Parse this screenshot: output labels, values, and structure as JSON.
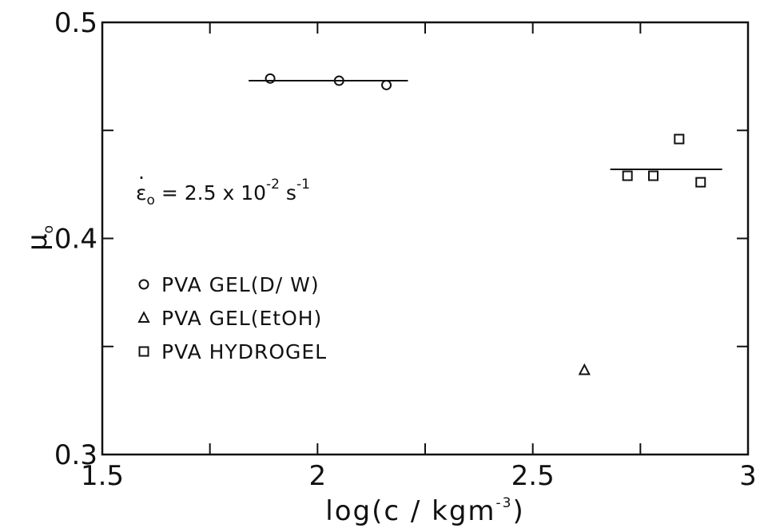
{
  "chart_data": {
    "type": "scatter",
    "xlabel": "log(c / kgm",
    "xlabel_sup": "-3",
    "xlabel_close": ")",
    "ylabel": "μ",
    "ylabel_sub": "o",
    "xlim": [
      1.5,
      3.0
    ],
    "ylim": [
      0.3,
      0.5
    ],
    "x_ticks": [
      1.5,
      2.0,
      2.5,
      3.0
    ],
    "x_tick_labels": [
      "1.5",
      "2",
      "2.5",
      "3"
    ],
    "y_ticks": [
      0.3,
      0.4,
      0.5
    ],
    "y_tick_labels": [
      "0.3",
      "0.4",
      "0.5"
    ],
    "x_minor_ticks": [
      1.75,
      2.25,
      2.75
    ],
    "y_minor_ticks": [
      0.35,
      0.45
    ],
    "grid": false,
    "annotation": {
      "lhs": "ε",
      "dot": "·",
      "sub": "o",
      "mid": " = 2.5 x 10",
      "exp": "-2",
      "unit": " s",
      "unit_exp": "-1"
    },
    "series": [
      {
        "name": "PVA GEL(D/ W)",
        "marker": "circle",
        "x": [
          1.89,
          2.05,
          2.16
        ],
        "y": [
          0.474,
          0.473,
          0.471
        ],
        "fit_line": {
          "x": [
            1.84,
            2.21
          ],
          "y": [
            0.473,
            0.473
          ]
        }
      },
      {
        "name": "PVA GEL(EtOH)",
        "marker": "triangle",
        "x": [
          2.62
        ],
        "y": [
          0.339
        ]
      },
      {
        "name": "PVA HYDROGEL",
        "marker": "square",
        "x": [
          2.72,
          2.78,
          2.84,
          2.89
        ],
        "y": [
          0.429,
          0.429,
          0.446,
          0.426
        ],
        "fit_line": {
          "x": [
            2.68,
            2.94
          ],
          "y": [
            0.432,
            0.432
          ]
        }
      }
    ],
    "legend": {
      "placement": "left-middle",
      "entries": [
        {
          "marker": "circle",
          "label": "PVA GEL(D/ W)"
        },
        {
          "marker": "triangle",
          "label": "PVA GEL(EtOH)"
        },
        {
          "marker": "square",
          "label": "PVA HYDROGEL"
        }
      ]
    }
  }
}
